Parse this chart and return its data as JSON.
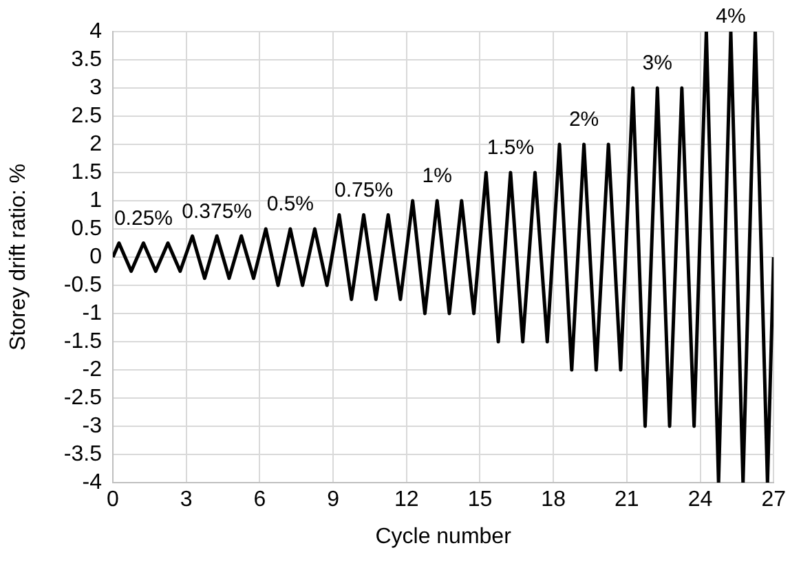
{
  "chart_data": {
    "type": "line",
    "xlabel": "Cycle number",
    "ylabel": "Storey drift ratio: %",
    "series": [
      {
        "color": "#000000",
        "x": [
          0,
          0.25,
          0.75,
          1.25,
          1.75,
          2.25,
          2.75,
          3.25,
          3.75,
          4.25,
          4.75,
          5.25,
          5.75,
          6.25,
          6.75,
          7.25,
          7.75,
          8.25,
          8.75,
          9.25,
          9.75,
          10.25,
          10.75,
          11.25,
          11.75,
          12.25,
          12.75,
          13.25,
          13.75,
          14.25,
          14.75,
          15.25,
          15.75,
          16.25,
          16.75,
          17.25,
          17.75,
          18.25,
          18.75,
          19.25,
          19.75,
          20.25,
          20.75,
          21.25,
          21.75,
          22.25,
          22.75,
          23.25,
          23.75,
          24.25,
          24.75,
          25.25,
          25.75,
          26.25,
          26.75,
          27
        ],
        "values": [
          0,
          0.25,
          -0.25,
          0.25,
          -0.25,
          0.25,
          -0.25,
          0.375,
          -0.375,
          0.375,
          -0.375,
          0.375,
          -0.375,
          0.5,
          -0.5,
          0.5,
          -0.5,
          0.5,
          -0.5,
          0.75,
          -0.75,
          0.75,
          -0.75,
          0.75,
          -0.75,
          1,
          -1,
          1,
          -1,
          1,
          -1,
          1.5,
          -1.5,
          1.5,
          -1.5,
          1.5,
          -1.5,
          2,
          -2,
          2,
          -2,
          2,
          -2,
          3,
          -3,
          3,
          -3,
          3,
          -3,
          4,
          -4,
          4,
          -4,
          4,
          -4,
          0
        ]
      }
    ],
    "xlim": [
      0,
      27
    ],
    "xticks": [
      0,
      3,
      6,
      9,
      12,
      15,
      18,
      21,
      24,
      27
    ],
    "ylim": [
      -4,
      4
    ],
    "yticks": [
      -4,
      -3.5,
      -3,
      -2.5,
      -2,
      -1.5,
      -1,
      -0.5,
      0,
      0.5,
      1,
      1.5,
      2,
      2.5,
      3,
      3.5,
      4
    ],
    "grid": true,
    "marker": "none",
    "line_style": "solid",
    "legend": false,
    "annotations": [
      "0.25%",
      "0.375%",
      "0.5%",
      "0.75%",
      "1%",
      "1.5%",
      "2%",
      "3%",
      "4%"
    ]
  }
}
